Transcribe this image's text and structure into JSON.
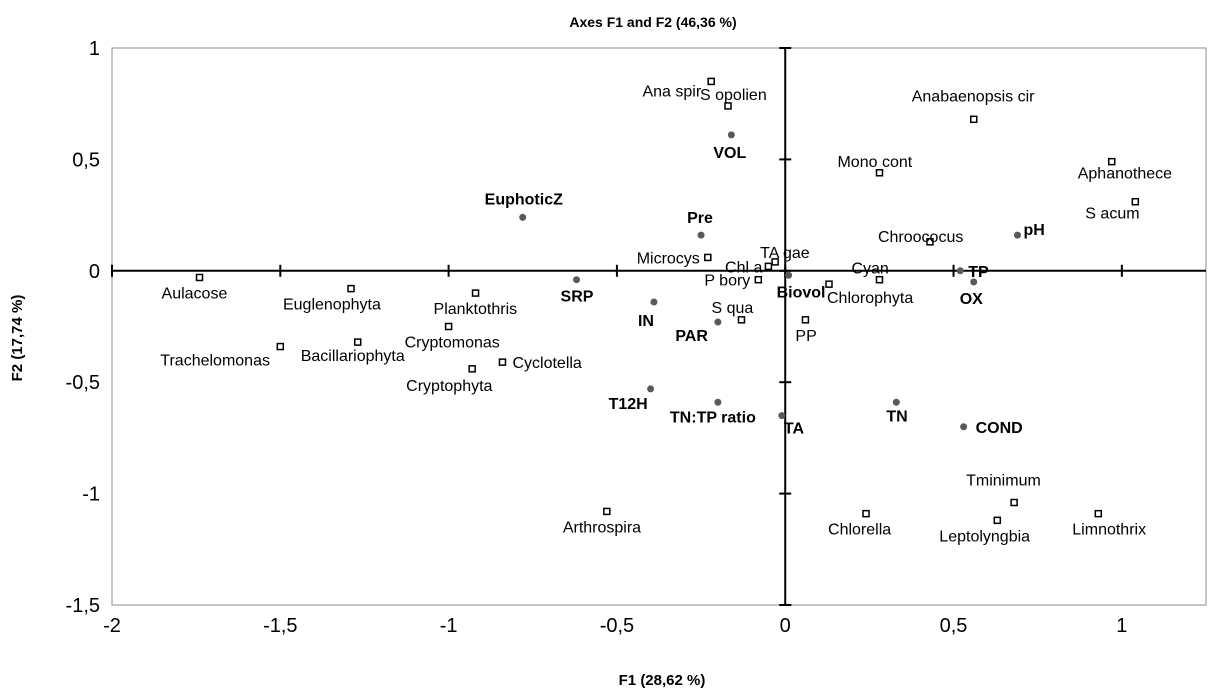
{
  "chart_data": {
    "type": "scatter",
    "title": "Axes F1 and F2 (46,36 %)",
    "xlabel": "F1 (28,62 %)",
    "ylabel": "F2 (17,74 %)",
    "xlim": [
      -2,
      1.25
    ],
    "ylim": [
      -1.5,
      1
    ],
    "x_ticks": [
      -2,
      -1.5,
      -1,
      -0.5,
      0,
      0.5,
      1
    ],
    "x_tick_labels": [
      "-2",
      "-1,5",
      "-1",
      "-0,5",
      "0",
      "0,5",
      "1"
    ],
    "y_ticks": [
      -1.5,
      -1,
      -0.5,
      0,
      0.5,
      1
    ],
    "y_tick_labels": [
      "-1,5",
      "-1",
      "-0,5",
      "0",
      "0,5",
      "1"
    ],
    "grid": false,
    "legend": false,
    "colors": {
      "species_marker_fill": "#ffffff",
      "marker_stroke": "#000000",
      "variable_marker": "#595959",
      "axis": "#000000"
    },
    "series": [
      {
        "marker": "open-square",
        "points": [
          {
            "label": "Ana spir",
            "x": -0.22,
            "y": 0.85
          },
          {
            "label": "S opolien",
            "x": -0.17,
            "y": 0.74
          },
          {
            "label": "Anabaenopsis cir",
            "x": 0.56,
            "y": 0.68
          },
          {
            "label": "Mono cont",
            "x": 0.28,
            "y": 0.44
          },
          {
            "label": "Aphanothece",
            "x": 0.97,
            "y": 0.49
          },
          {
            "label": "S acum",
            "x": 1.04,
            "y": 0.31
          },
          {
            "label": "Chroococus",
            "x": 0.43,
            "y": 0.13
          },
          {
            "label": "Microcys",
            "x": -0.23,
            "y": 0.06
          },
          {
            "label": "TA gae",
            "x": -0.03,
            "y": 0.04
          },
          {
            "label": "Chl a",
            "x": -0.05,
            "y": 0.02
          },
          {
            "label": "P bory",
            "x": -0.08,
            "y": -0.04
          },
          {
            "label": "Cyan",
            "x": 0.28,
            "y": -0.04
          },
          {
            "label": "Chlorophyta",
            "x": 0.13,
            "y": -0.06
          },
          {
            "label": "Aulacose",
            "x": -1.74,
            "y": -0.03
          },
          {
            "label": "Euglenophyta",
            "x": -1.29,
            "y": -0.08
          },
          {
            "label": "Planktothris",
            "x": -0.92,
            "y": -0.1
          },
          {
            "label": "Cryptomonas",
            "x": -1.0,
            "y": -0.25
          },
          {
            "label": "S qua",
            "x": -0.13,
            "y": -0.22
          },
          {
            "label": "PP",
            "x": 0.06,
            "y": -0.22
          },
          {
            "label": "Trachelomonas",
            "x": -1.5,
            "y": -0.34
          },
          {
            "label": "Bacillariophyta",
            "x": -1.27,
            "y": -0.32
          },
          {
            "label": "Cyclotella",
            "x": -0.84,
            "y": -0.41
          },
          {
            "label": "Cryptophyta",
            "x": -0.93,
            "y": -0.44
          },
          {
            "label": "Tminimum",
            "x": 0.68,
            "y": -1.04
          },
          {
            "label": "Chlorella",
            "x": 0.24,
            "y": -1.09
          },
          {
            "label": "Leptolyngbia",
            "x": 0.63,
            "y": -1.12
          },
          {
            "label": "Limnothrix",
            "x": 0.93,
            "y": -1.09
          },
          {
            "label": "Arthrospira",
            "x": -0.53,
            "y": -1.08
          }
        ]
      },
      {
        "marker": "filled-dot",
        "points": [
          {
            "label": "VOL",
            "x": -0.16,
            "y": 0.61
          },
          {
            "label": "EuphoticZ",
            "x": -0.78,
            "y": 0.24
          },
          {
            "label": "Pre",
            "x": -0.25,
            "y": 0.16
          },
          {
            "label": "pH",
            "x": 0.69,
            "y": 0.16
          },
          {
            "label": "Biovol",
            "x": 0.01,
            "y": -0.02
          },
          {
            "label": "TP",
            "x": 0.52,
            "y": 0.0
          },
          {
            "label": "OX",
            "x": 0.56,
            "y": -0.05
          },
          {
            "label": "SRP",
            "x": -0.62,
            "y": -0.04
          },
          {
            "label": "IN",
            "x": -0.39,
            "y": -0.14
          },
          {
            "label": "PAR",
            "x": -0.2,
            "y": -0.23
          },
          {
            "label": "T12H",
            "x": -0.4,
            "y": -0.53
          },
          {
            "label": "TN:TP ratio",
            "x": -0.2,
            "y": -0.59
          },
          {
            "label": "TA",
            "x": -0.01,
            "y": -0.65
          },
          {
            "label": "TN",
            "x": 0.33,
            "y": -0.59
          },
          {
            "label": "COND",
            "x": 0.53,
            "y": -0.7
          }
        ]
      }
    ]
  }
}
